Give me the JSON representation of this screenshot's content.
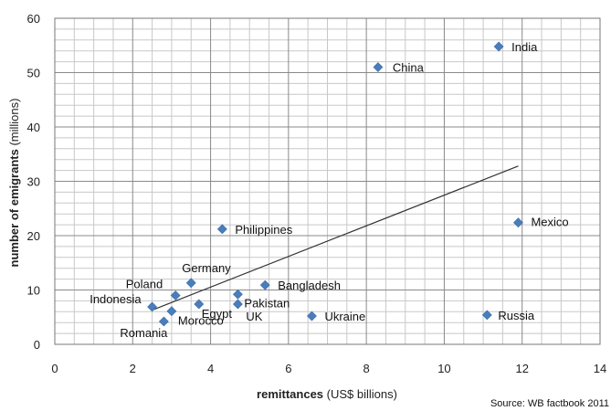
{
  "chart_data": {
    "type": "scatter",
    "xlabel_bold": "remittances",
    "xlabel_rest": " (US$ billions)",
    "ylabel_bold": "number of emigrants",
    "ylabel_rest": " (millions)",
    "source": "Source: WB factbook 2011",
    "xlim": [
      0,
      14
    ],
    "ylim": [
      0,
      60
    ],
    "x_ticks": [
      "0",
      "2",
      "4",
      "6",
      "8",
      "10",
      "12",
      "14"
    ],
    "y_ticks": [
      "0",
      "10",
      "20",
      "30",
      "40",
      "50",
      "60"
    ],
    "grid": true,
    "marker_color": "#4a7ebb",
    "trendline": {
      "x": [
        2.5,
        11.9
      ],
      "y": [
        6.3,
        32.8
      ]
    },
    "points": [
      {
        "label": "India",
        "x": 11.4,
        "y": 54.8
      },
      {
        "label": "China",
        "x": 8.3,
        "y": 51.0
      },
      {
        "label": "Mexico",
        "x": 11.9,
        "y": 22.4
      },
      {
        "label": "Philippines",
        "x": 4.3,
        "y": 21.2
      },
      {
        "label": "Germany",
        "x": 3.5,
        "y": 11.3
      },
      {
        "label": "Bangladesh",
        "x": 5.4,
        "y": 10.9
      },
      {
        "label": "Poland",
        "x": 3.1,
        "y": 9.0
      },
      {
        "label": "Pakistan",
        "x": 4.7,
        "y": 9.2
      },
      {
        "label": "Indonesia",
        "x": 2.5,
        "y": 6.9
      },
      {
        "label": "Egypt",
        "x": 3.7,
        "y": 7.4
      },
      {
        "label": "UK",
        "x": 4.7,
        "y": 7.4
      },
      {
        "label": "Morocco",
        "x": 3.0,
        "y": 6.1
      },
      {
        "label": "Romania",
        "x": 2.8,
        "y": 4.2
      },
      {
        "label": "Ukraine",
        "x": 6.6,
        "y": 5.2
      },
      {
        "label": "Russia",
        "x": 11.1,
        "y": 5.4
      }
    ]
  }
}
